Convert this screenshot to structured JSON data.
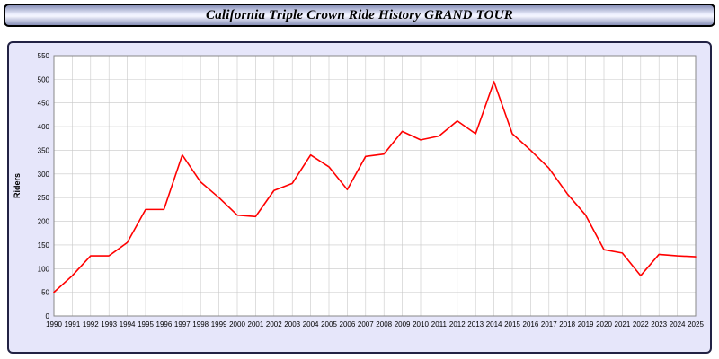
{
  "header": {
    "title": "California Triple Crown Ride History GRAND TOUR"
  },
  "chart_data": {
    "type": "line",
    "title": "California Triple Crown Ride History GRAND TOUR",
    "xlabel": "",
    "ylabel": "Riders",
    "ylim": [
      0,
      550
    ],
    "ytick_step": 50,
    "grid": true,
    "legend_position": "none",
    "line_color": "#ff0000",
    "plot_background": "#ffffff",
    "panel_background": "#e6e6fa",
    "grid_color": "#c8c8c8",
    "categories": [
      "1990",
      "1991",
      "1992",
      "1993",
      "1994",
      "1995",
      "1996",
      "1997",
      "1998",
      "1999",
      "2000",
      "2001",
      "2002",
      "2003",
      "2004",
      "2005",
      "2006",
      "2007",
      "2008",
      "2009",
      "2010",
      "2011",
      "2012",
      "2013",
      "2014",
      "2015",
      "2016",
      "2017",
      "2018",
      "2019",
      "2020",
      "2021",
      "2022",
      "2023",
      "2024",
      "2025"
    ],
    "series": [
      {
        "name": "Riders",
        "values": [
          50,
          85,
          127,
          127,
          155,
          225,
          225,
          340,
          283,
          250,
          213,
          210,
          265,
          280,
          340,
          315,
          267,
          337,
          342,
          390,
          372,
          380,
          412,
          385,
          495,
          385,
          350,
          312,
          258,
          213,
          140,
          133,
          85,
          130,
          127,
          125
        ]
      }
    ]
  }
}
